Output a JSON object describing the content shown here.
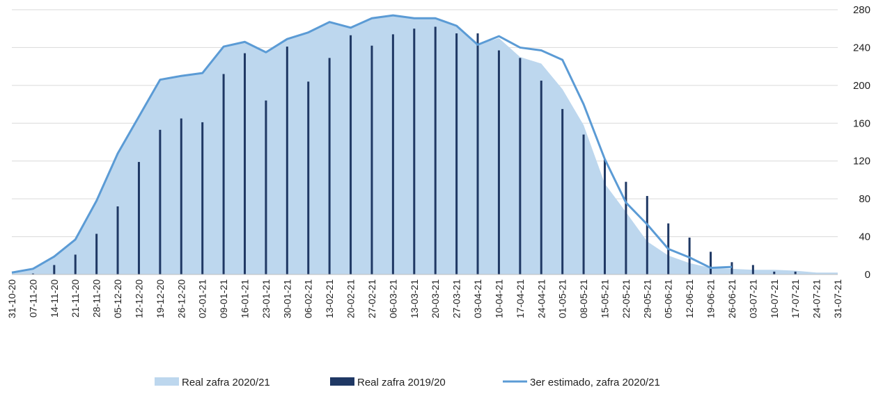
{
  "chart_data": {
    "type": "combo",
    "categories": [
      "31-10-20",
      "07-11-20",
      "14-11-20",
      "21-11-20",
      "28-11-20",
      "05-12-20",
      "12-12-20",
      "19-12-20",
      "26-12-20",
      "02-01-21",
      "09-01-21",
      "16-01-21",
      "23-01-21",
      "30-01-21",
      "06-02-21",
      "13-02-21",
      "20-02-21",
      "27-02-21",
      "06-03-21",
      "13-03-21",
      "20-03-21",
      "27-03-21",
      "03-04-21",
      "10-04-21",
      "17-04-21",
      "24-04-21",
      "01-05-21",
      "08-05-21",
      "15-05-21",
      "22-05-21",
      "29-05-21",
      "05-06-21",
      "12-06-21",
      "19-06-21",
      "26-06-21",
      "03-07-21",
      "10-07-21",
      "17-07-21",
      "24-07-21",
      "31-07-21"
    ],
    "series": [
      {
        "name": "Real zafra 2020/21",
        "type": "area",
        "color": "#bdd7ee",
        "values": [
          2,
          6,
          19,
          37,
          78,
          128,
          167,
          206,
          210,
          213,
          241,
          246,
          235,
          249,
          256,
          267,
          261,
          271,
          274,
          271,
          271,
          263,
          243,
          250,
          230,
          223,
          196,
          158,
          96,
          66,
          35,
          20,
          12,
          7,
          6,
          5,
          5,
          4,
          2,
          2
        ]
      },
      {
        "name": "Real zafra 2019/20",
        "type": "bar",
        "color": "#1f3864",
        "values": [
          0,
          1,
          10,
          21,
          43,
          72,
          119,
          153,
          165,
          161,
          212,
          234,
          184,
          241,
          204,
          229,
          253,
          242,
          254,
          260,
          262,
          255,
          255,
          237,
          229,
          205,
          175,
          148,
          122,
          98,
          83,
          54,
          39,
          24,
          13,
          10,
          3,
          3,
          0,
          0
        ]
      },
      {
        "name": "3er estimado, zafra 2020/21",
        "type": "line",
        "color": "#5b9bd5",
        "values": [
          2,
          6,
          19,
          37,
          78,
          128,
          167,
          206,
          210,
          213,
          241,
          246,
          235,
          249,
          256,
          267,
          261,
          271,
          274,
          271,
          271,
          263,
          243,
          252,
          240,
          237,
          227,
          180,
          122,
          76,
          53,
          27,
          18,
          7,
          8,
          null,
          null,
          null,
          null,
          null
        ]
      }
    ],
    "ylim": [
      0,
      280
    ],
    "yticks": [
      0,
      40,
      80,
      120,
      160,
      200,
      240,
      280
    ],
    "grid": true,
    "legend": "bottom"
  }
}
